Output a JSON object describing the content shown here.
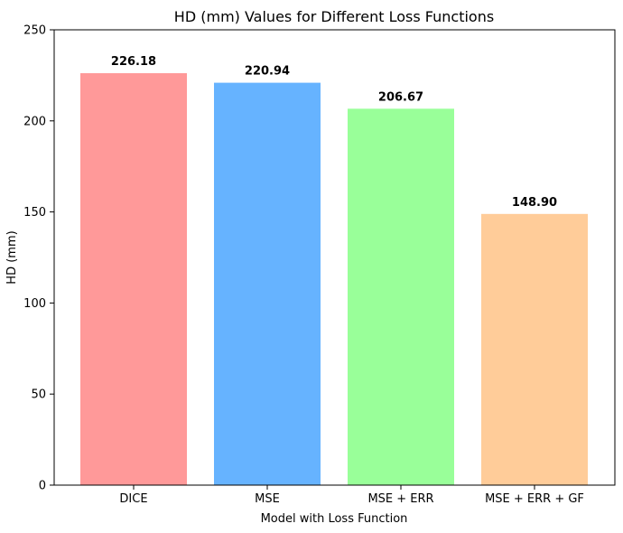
{
  "chart_data": {
    "type": "bar",
    "title": "HD (mm) Values for Different Loss Functions",
    "xlabel": "Model with Loss Function",
    "ylabel": "HD (mm)",
    "categories": [
      "DICE",
      "MSE",
      "MSE + ERR",
      "MSE + ERR + GF"
    ],
    "values": [
      226.18,
      220.94,
      206.67,
      148.9
    ],
    "value_labels": [
      "226.18",
      "220.94",
      "206.67",
      "148.90"
    ],
    "colors": [
      "#ff9999",
      "#66b3ff",
      "#99ff99",
      "#ffcc99"
    ],
    "ylim": [
      0,
      250
    ],
    "yticks": [
      0,
      50,
      100,
      150,
      200,
      250
    ],
    "grid": false,
    "legend": "none"
  }
}
